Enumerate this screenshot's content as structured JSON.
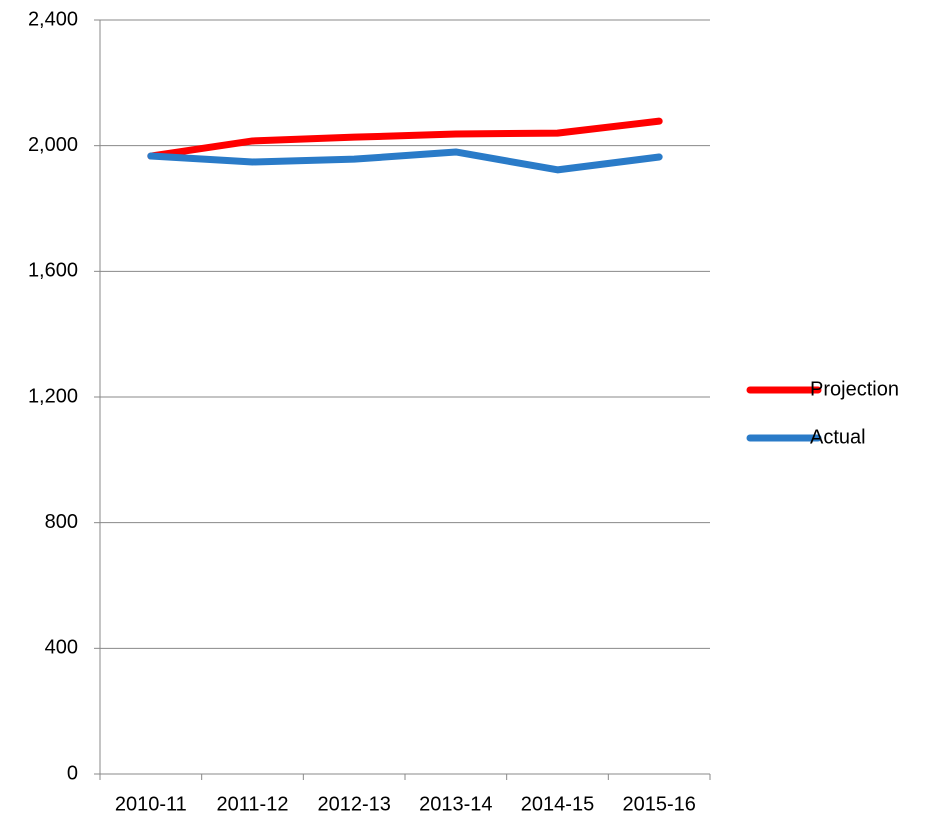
{
  "chart_data": {
    "type": "line",
    "categories": [
      "2010-11",
      "2011-12",
      "2012-13",
      "2013-14",
      "2014-15",
      "2015-16"
    ],
    "series": [
      {
        "name": "Projection",
        "color": "#ff0000",
        "values": [
          1967,
          2015,
          2027,
          2037,
          2040,
          2078
        ]
      },
      {
        "name": "Actual",
        "color": "#2a7bc8",
        "values": [
          1967,
          1948,
          1957,
          1980,
          1923,
          1964
        ]
      }
    ],
    "ylim": [
      0,
      2400
    ],
    "yticks": [
      0,
      400,
      800,
      {
        "value": 1200,
        "label": "1,200"
      },
      {
        "value": 1600,
        "label": "1,600"
      },
      {
        "value": 2000,
        "label": "2,000"
      },
      {
        "value": 2400,
        "label": "2,400"
      }
    ],
    "grid": true,
    "legend": "right"
  }
}
